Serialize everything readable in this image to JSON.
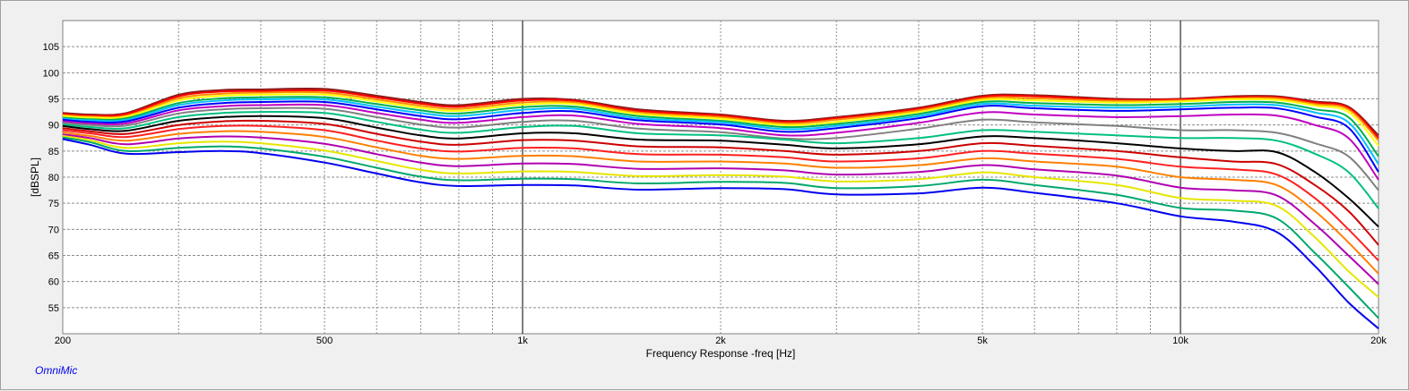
{
  "app": {
    "brand": "OmniMic"
  },
  "chart_data": {
    "type": "line",
    "xscale": "log",
    "xlim": [
      200,
      20000
    ],
    "ylim": [
      50,
      110
    ],
    "grid": true,
    "xlabel": "Frequency Response -freq [Hz]",
    "ylabel": "[dBSPL]",
    "xticks": [
      {
        "value": 200,
        "label": "200"
      },
      {
        "value": 500,
        "label": "500"
      },
      {
        "value": 1000,
        "label": "1k"
      },
      {
        "value": 2000,
        "label": "2k"
      },
      {
        "value": 5000,
        "label": "5k"
      },
      {
        "value": 10000,
        "label": "10k"
      },
      {
        "value": 20000,
        "label": "20k"
      }
    ],
    "yticks": [
      55,
      60,
      65,
      70,
      75,
      80,
      85,
      90,
      95,
      100,
      105
    ],
    "x": [
      200,
      220,
      250,
      300,
      350,
      400,
      500,
      600,
      700,
      800,
      1000,
      1200,
      1500,
      2000,
      2500,
      3000,
      4000,
      5000,
      6000,
      8000,
      10000,
      12000,
      14000,
      16000,
      18000,
      20000
    ],
    "series": [
      {
        "color": "#8b1a1a",
        "values": [
          92.3,
          92,
          92.3,
          95.8,
          96.7,
          96.8,
          96.9,
          95.6,
          94.4,
          93.8,
          95,
          94.8,
          93,
          92,
          90.8,
          91.5,
          93.3,
          95.6,
          95.7,
          95,
          95,
          95.5,
          95.5,
          94.5,
          93.5,
          88
        ]
      },
      {
        "color": "#ff0000",
        "values": [
          92.1,
          91.8,
          92.1,
          95.5,
          96.4,
          96.5,
          96.6,
          95.3,
          94.1,
          93.5,
          94.7,
          94.6,
          92.7,
          91.8,
          90.6,
          91.3,
          93.1,
          95.4,
          95.5,
          94.8,
          94.9,
          95.3,
          95.3,
          94.3,
          93.3,
          87.5
        ]
      },
      {
        "color": "#ff8c00",
        "values": [
          91.9,
          91.6,
          91.8,
          95.1,
          96,
          96.2,
          96.2,
          94.9,
          93.7,
          93.1,
          94.3,
          94.3,
          92.4,
          91.5,
          90.3,
          91,
          92.8,
          95.1,
          95.1,
          94.6,
          94.7,
          95.1,
          95.1,
          94,
          93,
          87
        ]
      },
      {
        "color": "#ffff00",
        "values": [
          91.7,
          91.4,
          91.6,
          94.7,
          95.6,
          95.8,
          95.8,
          94.5,
          93.3,
          92.7,
          93.9,
          94,
          92.1,
          91.2,
          90,
          90.6,
          92.5,
          94.8,
          94.7,
          94.3,
          94.5,
          94.9,
          94.8,
          93.7,
          92.5,
          86
        ]
      },
      {
        "color": "#00b050",
        "values": [
          91.4,
          91.1,
          91.3,
          94.2,
          95.1,
          95.3,
          95.3,
          94,
          92.8,
          92.2,
          93.4,
          93.5,
          91.7,
          90.8,
          89.6,
          90.2,
          92.1,
          94.4,
          94.2,
          93.8,
          94,
          94.4,
          94.3,
          93,
          91.5,
          84
        ]
      },
      {
        "color": "#00bfff",
        "values": [
          91.2,
          90.9,
          91,
          93.8,
          94.7,
          94.9,
          94.9,
          93.5,
          92.3,
          91.7,
          92.9,
          93.1,
          91.3,
          90.5,
          89.2,
          89.8,
          91.7,
          94,
          93.7,
          93.3,
          93.5,
          93.9,
          93.8,
          92.4,
          90.5,
          82.5
        ]
      },
      {
        "color": "#0000ff",
        "values": [
          91,
          90.6,
          90.7,
          93.3,
          94.2,
          94.4,
          94.4,
          93,
          91.7,
          91.1,
          92.3,
          92.6,
          90.9,
          90.1,
          88.7,
          89.4,
          91.3,
          93.6,
          93.2,
          92.7,
          93,
          93.3,
          93.2,
          91.6,
          89.5,
          81
        ]
      },
      {
        "color": "#c000c0",
        "values": [
          90.7,
          90.3,
          90.3,
          92.8,
          93.6,
          93.8,
          93.8,
          92.3,
          91,
          90.4,
          91.5,
          91.8,
          90.2,
          89.4,
          88,
          88.5,
          90.4,
          92.4,
          92,
          91.5,
          91.7,
          92,
          91.8,
          90,
          87.5,
          79.5
        ]
      },
      {
        "color": "#808080",
        "values": [
          90.4,
          90,
          89.9,
          92.2,
          93,
          93.2,
          93.1,
          91.5,
          90.1,
          89.5,
          90.6,
          90.8,
          89.3,
          88.6,
          87.4,
          87.5,
          89.3,
          91,
          90.5,
          89.8,
          89,
          89,
          88.5,
          86.5,
          84,
          77.5
        ]
      },
      {
        "color": "#00c080",
        "values": [
          90.1,
          89.6,
          89.4,
          91.5,
          92.3,
          92.5,
          92.3,
          90.6,
          89.1,
          88.5,
          89.6,
          89.8,
          88.4,
          88,
          87.2,
          86.5,
          87.5,
          89,
          88.7,
          88,
          87.5,
          87.5,
          87,
          84.5,
          81,
          74
        ]
      },
      {
        "color": "#000000",
        "values": [
          89.8,
          89.2,
          88.9,
          90.8,
          91.5,
          91.7,
          91.3,
          89.5,
          88,
          87.4,
          88.4,
          88.4,
          87.2,
          87,
          86.2,
          85.5,
          86.3,
          87.8,
          87.5,
          86.5,
          85.5,
          85,
          84.8,
          81,
          76,
          70.5
        ]
      },
      {
        "color": "#cc0000",
        "values": [
          89.4,
          88.8,
          88.3,
          90,
          90.7,
          90.8,
          90.2,
          88.3,
          86.8,
          86.2,
          87.1,
          87,
          85.9,
          85.7,
          85,
          84.3,
          85,
          86.5,
          86,
          85,
          83.8,
          83,
          82.5,
          78.5,
          73.5,
          67
        ]
      },
      {
        "color": "#ff2020",
        "values": [
          89,
          88.4,
          87.7,
          89.2,
          89.8,
          89.8,
          89,
          87,
          85.5,
          84.9,
          85.6,
          85.5,
          84.4,
          84.3,
          83.8,
          83,
          83.6,
          85,
          84.5,
          83.5,
          82,
          81.5,
          80.5,
          76,
          70,
          64
        ]
      },
      {
        "color": "#ff7f00",
        "values": [
          88.6,
          87.9,
          87,
          88.3,
          88.8,
          88.7,
          87.7,
          85.7,
          84.1,
          83.5,
          84.1,
          84,
          83,
          83,
          82.6,
          81.8,
          82.3,
          83.6,
          83,
          82,
          80,
          79.5,
          78.5,
          73.5,
          67.5,
          61.5
        ]
      },
      {
        "color": "#b000b0",
        "values": [
          88.2,
          87.5,
          86.3,
          87.4,
          87.8,
          87.6,
          86.4,
          84.4,
          82.8,
          82.1,
          82.6,
          82.5,
          81.6,
          81.7,
          81.3,
          80.5,
          81,
          82.3,
          81.5,
          80.3,
          78,
          77.5,
          76.5,
          71,
          65,
          59.5
        ]
      },
      {
        "color": "#e6e600",
        "values": [
          87.9,
          87.1,
          85.6,
          86.5,
          86.8,
          86.5,
          85.1,
          83.1,
          81.4,
          80.7,
          81.1,
          81,
          80.2,
          80.4,
          80.1,
          79.2,
          79.6,
          80.9,
          80,
          78.5,
          76,
          75.5,
          74.5,
          68.5,
          62,
          57
        ]
      },
      {
        "color": "#00a86b",
        "values": [
          87.6,
          86.7,
          85,
          85.6,
          85.9,
          85.5,
          83.9,
          81.8,
          80.1,
          79.4,
          79.7,
          79.6,
          78.8,
          79.1,
          78.9,
          77.9,
          78.3,
          79.5,
          78.5,
          76.6,
          74.1,
          73.6,
          72.1,
          65.5,
          59,
          53
        ]
      },
      {
        "color": "#0000ee",
        "values": [
          87.3,
          86.2,
          84.5,
          84.8,
          85,
          84.6,
          82.8,
          80.7,
          79,
          78.3,
          78.5,
          78.4,
          77.6,
          77.9,
          77.7,
          76.7,
          76.9,
          78,
          77,
          75,
          72.5,
          71.5,
          69.5,
          63,
          56,
          51
        ]
      }
    ]
  }
}
